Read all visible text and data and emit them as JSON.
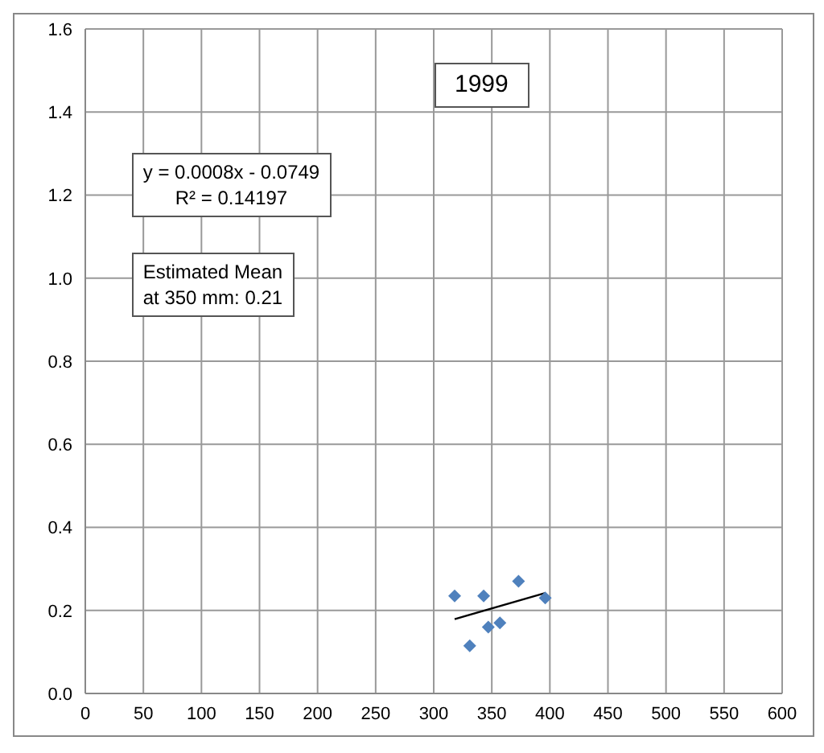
{
  "chart_data": {
    "type": "scatter",
    "title": "1999",
    "annotations": [
      "y = 0.0008x - 0.0749\nR² = 0.14197",
      "Estimated Mean\nat 350 mm: 0.21"
    ],
    "series": [
      {
        "color": "#4f81bd",
        "marker": "diamond",
        "x": [
          318,
          331,
          343,
          347,
          357,
          373,
          396
        ],
        "values": [
          0.235,
          0.115,
          0.235,
          0.16,
          0.17,
          0.27,
          0.23
        ]
      },
      {
        "type": "line",
        "color": "#000000",
        "marker": "none",
        "x": [
          318,
          396
        ],
        "values": [
          0.179,
          0.242
        ]
      }
    ],
    "xlim": [
      0,
      600
    ],
    "xticks": [
      0,
      50,
      100,
      150,
      200,
      250,
      300,
      350,
      400,
      450,
      500,
      550,
      600
    ],
    "ylim": [
      0,
      1.6
    ],
    "yticks": [
      {
        "value": 0,
        "label": "0.0"
      },
      {
        "value": 0.2,
        "label": "0.2"
      },
      {
        "value": 0.4,
        "label": "0.4"
      },
      {
        "value": 0.6,
        "label": "0.6"
      },
      {
        "value": 0.8,
        "label": "0.8"
      },
      {
        "value": 1,
        "label": "1.0"
      },
      {
        "value": 1.2,
        "label": "1.2"
      },
      {
        "value": 1.4,
        "label": "1.4"
      },
      {
        "value": 1.6,
        "label": "1.6"
      }
    ],
    "grid": true,
    "legend": false
  }
}
